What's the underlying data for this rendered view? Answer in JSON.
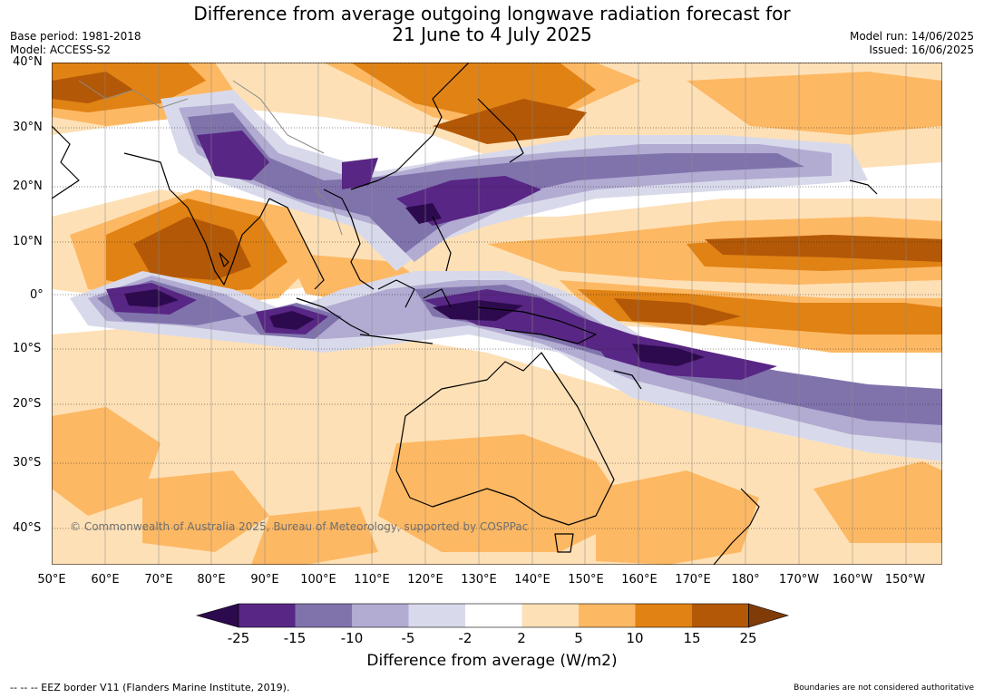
{
  "header": {
    "title_line1": "Difference from average outgoing longwave radiation forecast for",
    "title_line2": "21 June to 4 July 2025",
    "base_period": "Base period: 1981-2018",
    "model": "Model: ACCESS-S2",
    "model_run": "Model run: 14/06/2025",
    "issued": "Issued: 16/06/2025"
  },
  "map": {
    "lat_labels": [
      "40°N",
      "30°N",
      "20°N",
      "10°N",
      "0°",
      "10°S",
      "20°S",
      "30°S",
      "40°S"
    ],
    "lon_labels": [
      "50°E",
      "60°E",
      "70°E",
      "80°E",
      "90°E",
      "100°E",
      "110°E",
      "120°E",
      "130°E",
      "140°E",
      "150°E",
      "160°E",
      "170°E",
      "180°",
      "170°W",
      "160°W",
      "150°W"
    ],
    "copyright": "© Commonwealth of Australia 2025, Bureau of Meteorology, supported by COSPPac"
  },
  "legend": {
    "tick_labels": [
      "-25",
      "-15",
      "-10",
      "-5",
      "-2",
      "2",
      "5",
      "10",
      "15",
      "25"
    ],
    "label": "Difference from average (W/m2)",
    "colors": {
      "below_-25": "#2d0a4e",
      "-25_-15": "#582684",
      "-15_-10": "#8073ac",
      "-10_-5": "#b2abd2",
      "-5_-2": "#d8daeb",
      "-2_2": "#ffffff",
      "2_5": "#fee0b6",
      "5_10": "#fdb863",
      "10_15": "#e08214",
      "15_25": "#b35806",
      "above_25": "#7f3b08"
    }
  },
  "footer": {
    "eez_note": "-- -- -- EEZ border V11 (Flanders Marine Institute, 2019).",
    "boundary_note": "Boundaries are not considered authoritative"
  }
}
